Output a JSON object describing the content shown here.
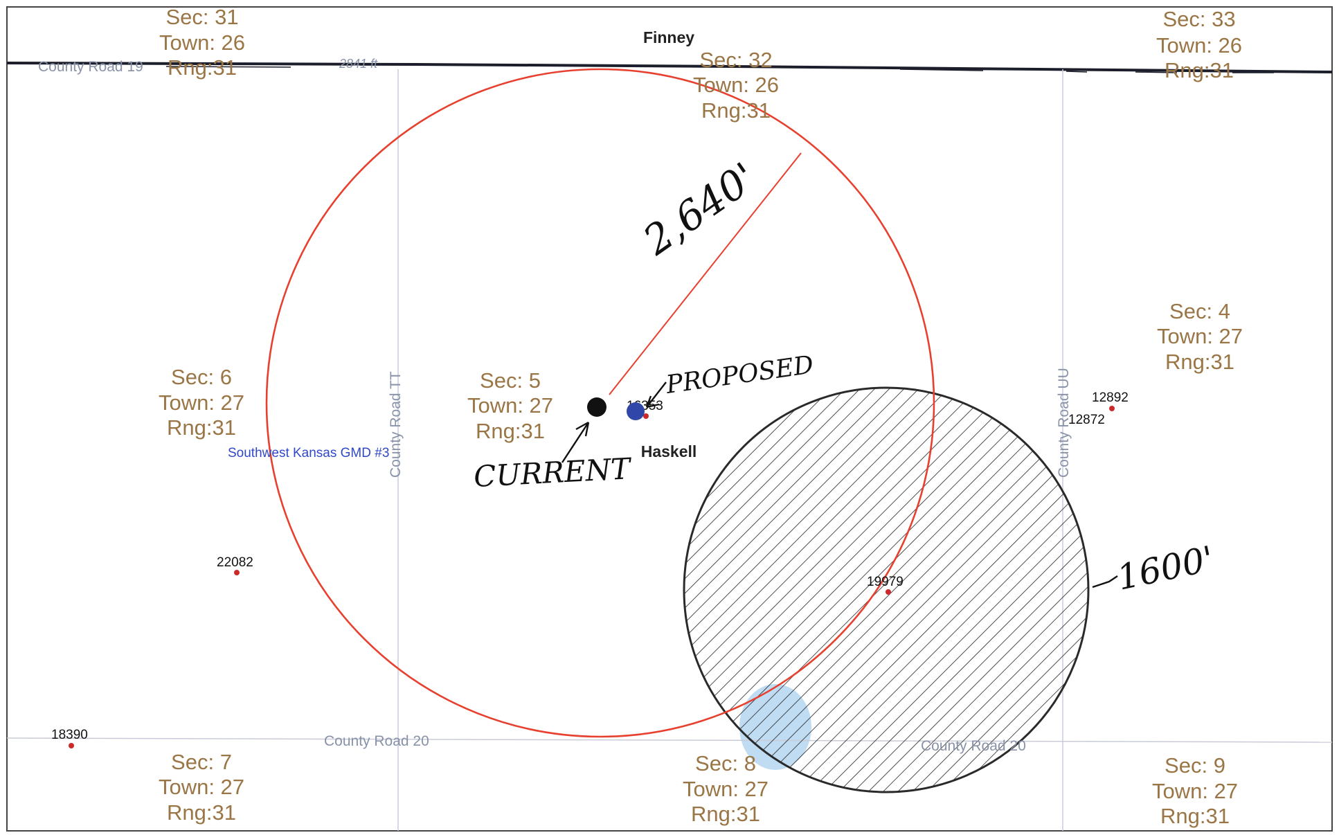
{
  "counties": {
    "north": "Finney",
    "south": "Haskell"
  },
  "sections": [
    {
      "sec": "Sec: 31",
      "town": "Town: 26",
      "rng": "Rng:31"
    },
    {
      "sec": "Sec: 32",
      "town": "Town: 26",
      "rng": "Rng:31"
    },
    {
      "sec": "Sec: 33",
      "town": "Town: 26",
      "rng": "Rng:31"
    },
    {
      "sec": "Sec: 6",
      "town": "Town: 27",
      "rng": "Rng:31"
    },
    {
      "sec": "Sec: 5",
      "town": "Town: 27",
      "rng": "Rng:31"
    },
    {
      "sec": "Sec: 4",
      "town": "Town: 27",
      "rng": "Rng:31"
    },
    {
      "sec": "Sec: 7",
      "town": "Town: 27",
      "rng": "Rng:31"
    },
    {
      "sec": "Sec: 8",
      "town": "Town: 27",
      "rng": "Rng:31"
    },
    {
      "sec": "Sec: 9",
      "town": "Town: 27",
      "rng": "Rng:31"
    }
  ],
  "roads": {
    "north": "County Road 19",
    "north_marker": "2841 ft",
    "west": "County Road TT",
    "east": "County Road UU",
    "south_west": "County Road 20",
    "south_east": "County Road 20"
  },
  "district": "Southwest Kansas GMD #3",
  "wells": [
    "16353",
    "12892",
    "12872",
    "22082",
    "19979",
    "18390"
  ],
  "annotations": {
    "radius_label": "2,640'",
    "hatched_radius_label": "1600'",
    "proposed_label": "PROPOSED",
    "current_label": "CURRENT"
  },
  "colors": {
    "section_label": "#9a7646",
    "buffer_circle": "#e8402f",
    "hatch": "#222222",
    "proposed_well": "#3046a8",
    "current_well": "#111111",
    "well_dot": "#cc2a2a",
    "district": "#2f47c9",
    "water_patch": "#a9d0ef"
  }
}
